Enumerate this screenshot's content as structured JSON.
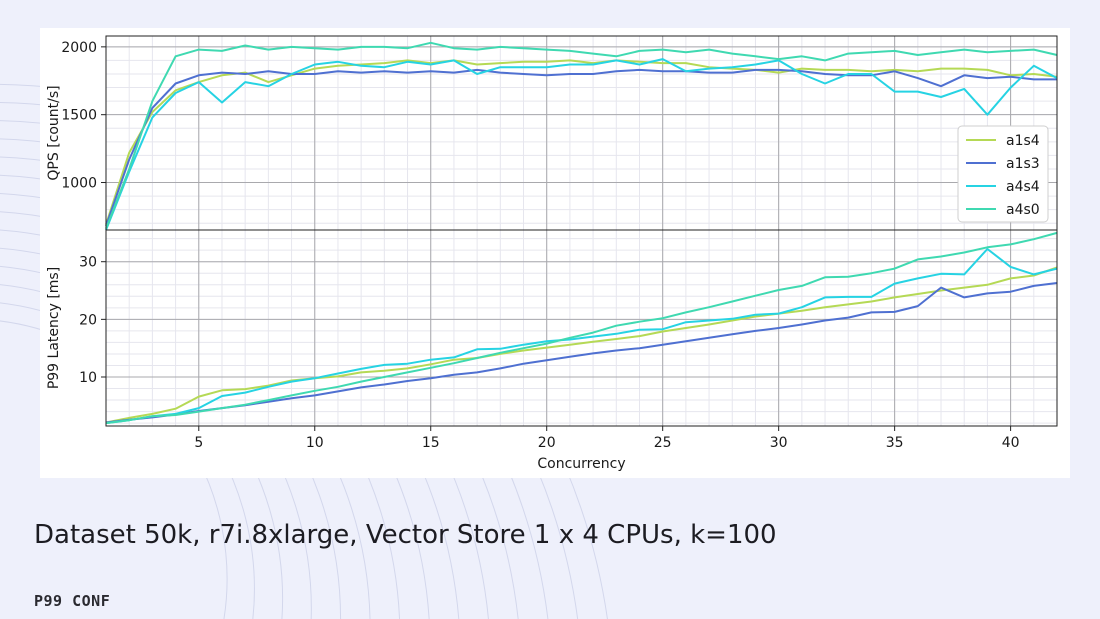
{
  "caption": "Dataset 50k, r7i.8xlarge, Vector Store 1 x 4 CPUs, k=100",
  "logo_text": "P99 CONF",
  "chart_data": {
    "type": "line",
    "x": [
      1,
      2,
      3,
      4,
      5,
      6,
      7,
      8,
      9,
      10,
      11,
      12,
      13,
      14,
      15,
      16,
      17,
      18,
      19,
      20,
      21,
      22,
      23,
      24,
      25,
      26,
      27,
      28,
      29,
      30,
      31,
      32,
      33,
      34,
      35,
      36,
      37,
      38,
      39,
      40,
      41,
      42
    ],
    "xlabel": "Concurrency",
    "xlim": [
      1,
      42
    ],
    "xticks": [
      5,
      10,
      15,
      20,
      25,
      30,
      35,
      40
    ],
    "legend_position": "right",
    "subplots": [
      {
        "id": "qps",
        "ylabel": "QPS [count/s]",
        "ylim": [
          650,
          2080
        ],
        "yticks": [
          1000,
          1500,
          2000
        ],
        "series": [
          {
            "name": "a1s4",
            "color": "#b5d955",
            "values": [
              690,
              1220,
              1520,
              1680,
              1740,
              1790,
              1810,
              1740,
              1790,
              1840,
              1860,
              1870,
              1880,
              1900,
              1880,
              1900,
              1870,
              1880,
              1890,
              1890,
              1900,
              1880,
              1900,
              1890,
              1880,
              1880,
              1850,
              1840,
              1830,
              1810,
              1840,
              1830,
              1830,
              1820,
              1830,
              1820,
              1840,
              1840,
              1830,
              1790,
              1800,
              1780
            ]
          },
          {
            "name": "a1s3",
            "color": "#4f70d1",
            "values": [
              680,
              1170,
              1550,
              1730,
              1790,
              1810,
              1800,
              1820,
              1800,
              1800,
              1820,
              1810,
              1820,
              1810,
              1820,
              1810,
              1830,
              1810,
              1800,
              1790,
              1800,
              1800,
              1820,
              1830,
              1820,
              1820,
              1810,
              1810,
              1830,
              1830,
              1820,
              1800,
              1790,
              1790,
              1820,
              1770,
              1710,
              1790,
              1770,
              1780,
              1760,
              1760
            ]
          },
          {
            "name": "a4s4",
            "color": "#26d3e3",
            "values": [
              650,
              1080,
              1480,
              1660,
              1740,
              1590,
              1740,
              1710,
              1800,
              1870,
              1890,
              1860,
              1850,
              1890,
              1870,
              1900,
              1800,
              1850,
              1850,
              1850,
              1870,
              1870,
              1900,
              1870,
              1910,
              1820,
              1840,
              1850,
              1870,
              1900,
              1800,
              1730,
              1800,
              1800,
              1670,
              1670,
              1630,
              1690,
              1500,
              1700,
              1860,
              1770
            ]
          },
          {
            "name": "a4s0",
            "color": "#3fd9b1",
            "values": [
              660,
              1100,
              1600,
              1930,
              1980,
              1970,
              2010,
              1980,
              2000,
              1990,
              1980,
              2000,
              2000,
              1990,
              2030,
              1990,
              1980,
              2000,
              1990,
              1980,
              1970,
              1950,
              1930,
              1970,
              1980,
              1960,
              1980,
              1950,
              1930,
              1910,
              1930,
              1900,
              1950,
              1960,
              1970,
              1940,
              1960,
              1980,
              1960,
              1970,
              1980,
              1940
            ]
          }
        ]
      },
      {
        "id": "latency",
        "ylabel": "P99 Latency [ms]",
        "ylim": [
          1.5,
          35.5
        ],
        "yticks": [
          10,
          20,
          30
        ],
        "series": [
          {
            "name": "a1s4",
            "color": "#b5d955",
            "values": [
              2.1,
              2.9,
              3.6,
              4.5,
              6.6,
              7.7,
              7.9,
              8.5,
              9.4,
              9.8,
              10.1,
              10.8,
              11.1,
              11.5,
              12.2,
              13.0,
              13.3,
              14.0,
              14.6,
              15.1,
              15.6,
              16.1,
              16.6,
              17.1,
              17.9,
              18.5,
              19.1,
              19.8,
              20.5,
              21.0,
              21.5,
              22.1,
              22.6,
              23.1,
              23.8,
              24.4,
              25.0,
              25.5,
              26.0,
              27.1,
              27.6,
              29.0
            ]
          },
          {
            "name": "a1s3",
            "color": "#4f70d1",
            "values": [
              2.1,
              2.6,
              3.0,
              3.5,
              4.1,
              4.6,
              5.1,
              5.7,
              6.3,
              6.8,
              7.5,
              8.2,
              8.7,
              9.3,
              9.8,
              10.4,
              10.8,
              11.5,
              12.3,
              12.9,
              13.5,
              14.1,
              14.6,
              15.0,
              15.6,
              16.2,
              16.8,
              17.4,
              18.0,
              18.5,
              19.1,
              19.8,
              20.3,
              21.2,
              21.3,
              22.3,
              25.5,
              23.8,
              24.5,
              24.8,
              25.8,
              26.3
            ]
          },
          {
            "name": "a4s4",
            "color": "#26d3e3",
            "values": [
              2.0,
              2.5,
              3.2,
              3.6,
              4.6,
              6.7,
              7.3,
              8.3,
              9.2,
              9.8,
              10.6,
              11.4,
              12.1,
              12.3,
              13.0,
              13.4,
              14.8,
              14.9,
              15.6,
              16.2,
              16.5,
              17.0,
              17.5,
              18.2,
              18.3,
              19.5,
              19.8,
              20.1,
              20.8,
              21.0,
              22.1,
              23.8,
              23.9,
              23.9,
              26.2,
              27.1,
              27.9,
              27.8,
              32.2,
              29.1,
              27.8,
              28.8
            ]
          },
          {
            "name": "a4s0",
            "color": "#3fd9b1",
            "values": [
              2.0,
              2.5,
              3.2,
              3.4,
              4.0,
              4.6,
              5.2,
              6.0,
              6.8,
              7.6,
              8.3,
              9.2,
              10.0,
              10.8,
              11.6,
              12.4,
              13.3,
              14.2,
              15.0,
              15.8,
              16.8,
              17.7,
              18.9,
              19.6,
              20.2,
              21.2,
              22.1,
              23.1,
              24.1,
              25.1,
              25.8,
              27.3,
              27.4,
              28.0,
              28.8,
              30.4,
              30.9,
              31.6,
              32.5,
              33.0,
              33.9,
              35.0
            ]
          }
        ]
      }
    ]
  }
}
